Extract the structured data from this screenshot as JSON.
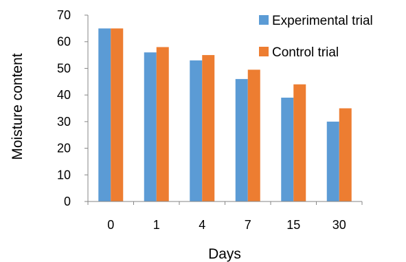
{
  "chart_data": {
    "type": "bar",
    "categories": [
      "0",
      "1",
      "4",
      "7",
      "15",
      "30"
    ],
    "series": [
      {
        "name": "Experimental trial",
        "values": [
          65,
          56,
          53,
          46,
          39,
          30
        ]
      },
      {
        "name": "Control trial",
        "values": [
          65,
          58,
          55,
          49.5,
          44,
          35
        ]
      }
    ],
    "xlabel": "Days",
    "ylabel": "Moisture content",
    "ylim": [
      0,
      70
    ],
    "yticks": [
      "0",
      "10",
      "20",
      "30",
      "40",
      "50",
      "60",
      "70"
    ],
    "grid": false,
    "legend_position": "top-right"
  },
  "colors": {
    "series": [
      "#5B9BD5",
      "#ED7D31"
    ],
    "axis": "#868686"
  }
}
